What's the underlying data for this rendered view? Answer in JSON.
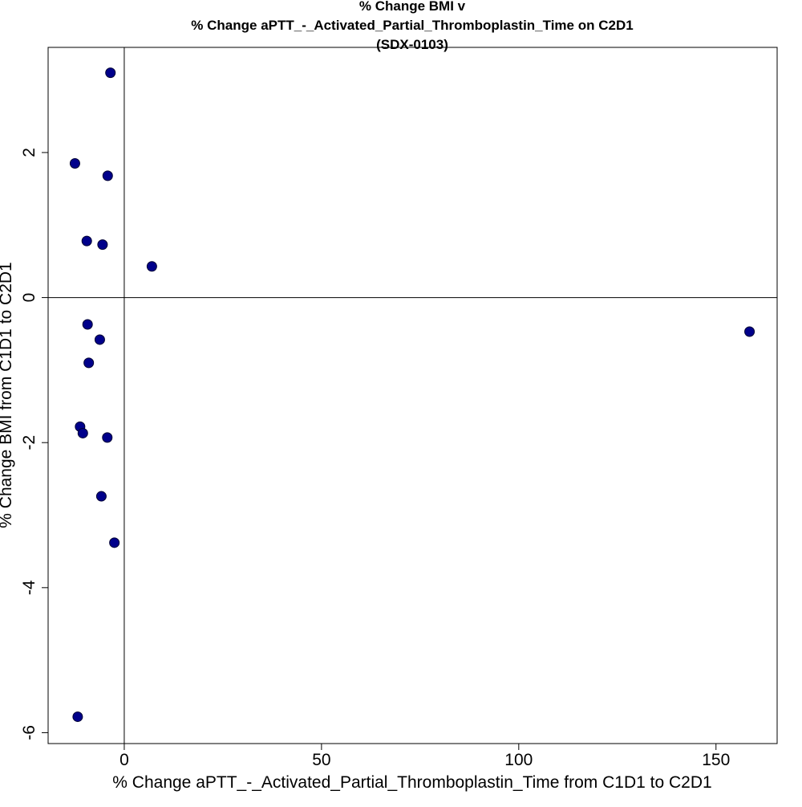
{
  "chart_data": {
    "type": "scatter",
    "title_lines": [
      "% Change BMI v",
      "% Change aPTT_-_Activated_Partial_Thromboplastin_Time on C2D1",
      "(SDX-0103)"
    ],
    "xlabel": "% Change aPTT_-_Activated_Partial_Thromboplastin_Time from C1D1 to C2D1",
    "ylabel": "% Change BMI from C1D1 to C2D1",
    "xlim": [
      -19.3,
      165.5
    ],
    "ylim": [
      -6.15,
      3.45
    ],
    "xticks": [
      0,
      50,
      100,
      150
    ],
    "yticks": [
      -6,
      -4,
      -2,
      0,
      2
    ],
    "xtick_labels": [
      "0",
      "50",
      "100",
      "150"
    ],
    "ytick_labels": [
      "-6",
      "-4",
      "-2",
      "0",
      "2"
    ],
    "reference_lines": {
      "x": 0,
      "y": 0
    },
    "grid": false,
    "marker_color": "#00008B",
    "points": [
      {
        "x": -3.5,
        "y": 3.1
      },
      {
        "x": -12.5,
        "y": 1.85
      },
      {
        "x": -4.2,
        "y": 1.68
      },
      {
        "x": -9.5,
        "y": 0.78
      },
      {
        "x": -5.5,
        "y": 0.73
      },
      {
        "x": 7.0,
        "y": 0.43
      },
      {
        "x": -9.3,
        "y": -0.37
      },
      {
        "x": -6.2,
        "y": -0.58
      },
      {
        "x": -9.0,
        "y": -0.9
      },
      {
        "x": -11.2,
        "y": -1.78
      },
      {
        "x": -10.5,
        "y": -1.87
      },
      {
        "x": -4.3,
        "y": -1.93
      },
      {
        "x": -5.8,
        "y": -2.74
      },
      {
        "x": -2.5,
        "y": -3.38
      },
      {
        "x": -11.8,
        "y": -5.78
      },
      {
        "x": 158.5,
        "y": -0.47
      }
    ]
  }
}
